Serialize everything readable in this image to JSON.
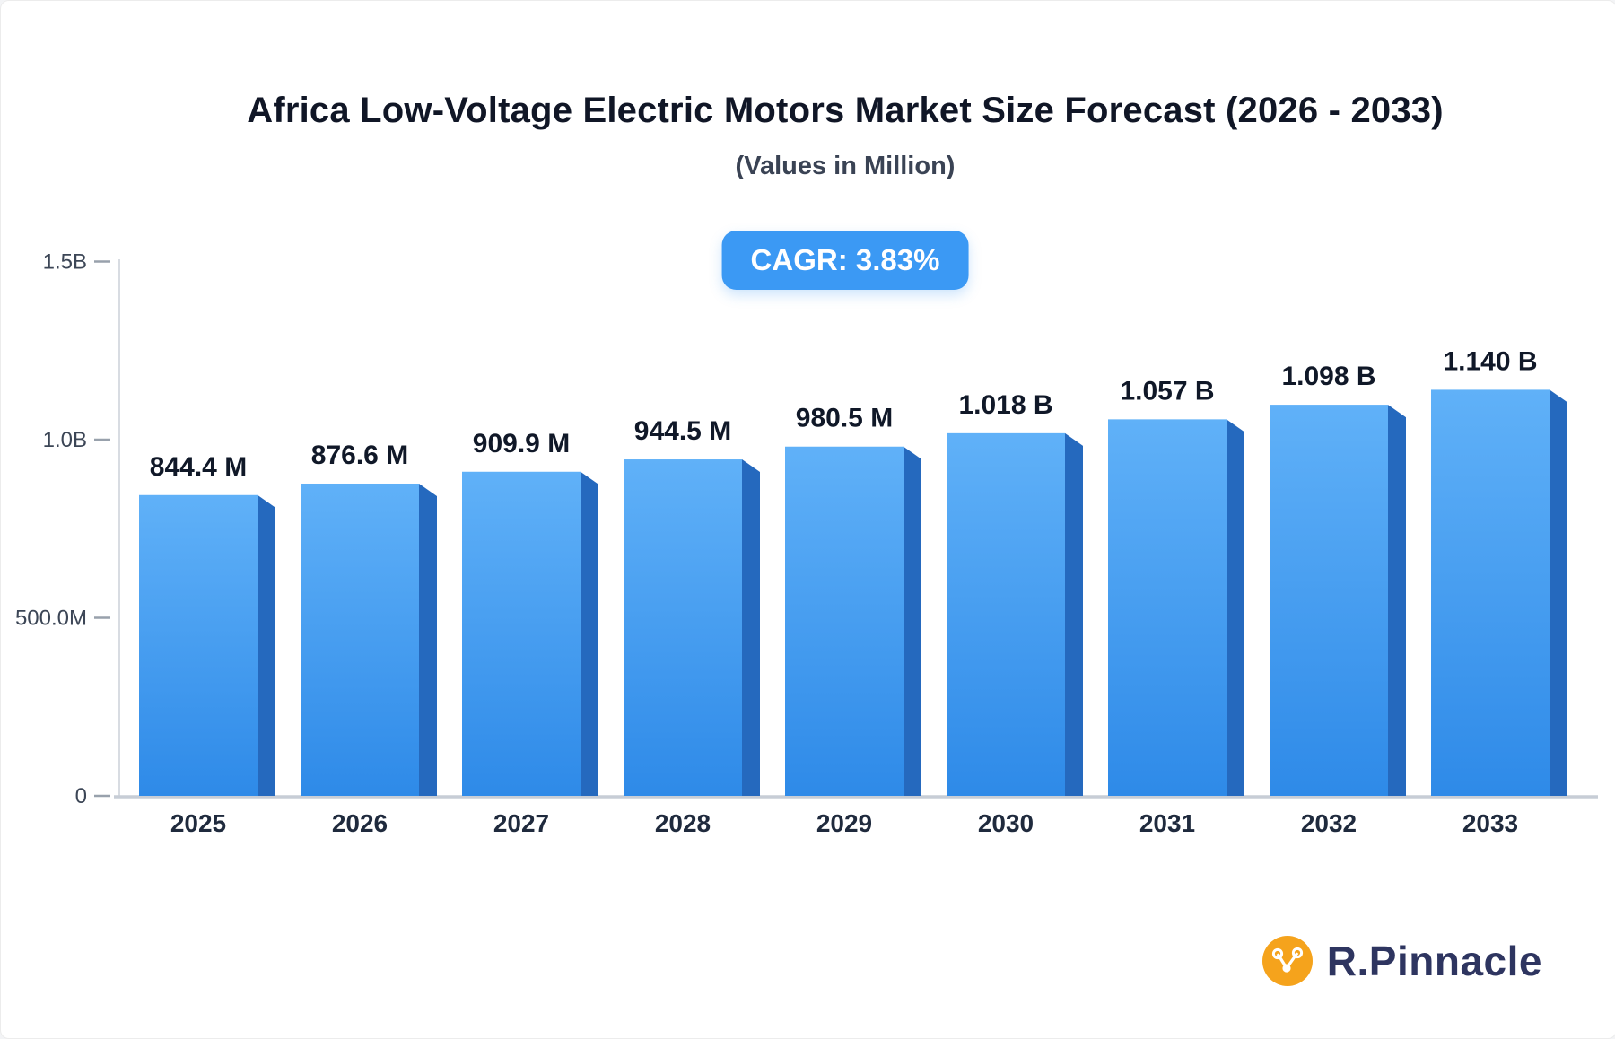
{
  "header": {
    "title": "Africa Low-Voltage Electric Motors Market Size Forecast (2026 - 2033)",
    "subtitle": "(Values in Million)",
    "cagr_badge": "CAGR: 3.83%"
  },
  "brand": {
    "name": "R.Pinnacle"
  },
  "colors": {
    "badge_bg": "#3b99f4",
    "bar_top": "#60b1f8",
    "bar_bottom": "#2e8ae8",
    "bar_side": "#2569be",
    "logo_orange": "#f5a31c",
    "logo_navy": "#2e3560"
  },
  "chart_data": {
    "type": "bar",
    "title": "Africa Low-Voltage Electric Motors Market Size Forecast (2026 - 2033)",
    "subtitle": "(Values in Million)",
    "annotation": "CAGR: 3.83%",
    "categories": [
      "2025",
      "2026",
      "2027",
      "2028",
      "2029",
      "2030",
      "2031",
      "2032",
      "2033"
    ],
    "values_millions": [
      844.4,
      876.6,
      909.9,
      944.5,
      980.5,
      1018,
      1057,
      1098,
      1140
    ],
    "bar_labels": [
      "844.4 M",
      "876.6 M",
      "909.9 M",
      "944.5 M",
      "980.5 M",
      "1.018 B",
      "1.057 B",
      "1.098 B",
      "1.140 B"
    ],
    "y_ticks": [
      {
        "value_millions": 1500,
        "label": "1.5B"
      },
      {
        "value_millions": 1000,
        "label": "1.0B"
      },
      {
        "value_millions": 500,
        "label": "500.0M"
      },
      {
        "value_millions": 0,
        "label": "0"
      }
    ],
    "ylim_millions": [
      0,
      1500
    ],
    "xlabel": "",
    "ylabel": "",
    "grid": false,
    "legend": false
  }
}
